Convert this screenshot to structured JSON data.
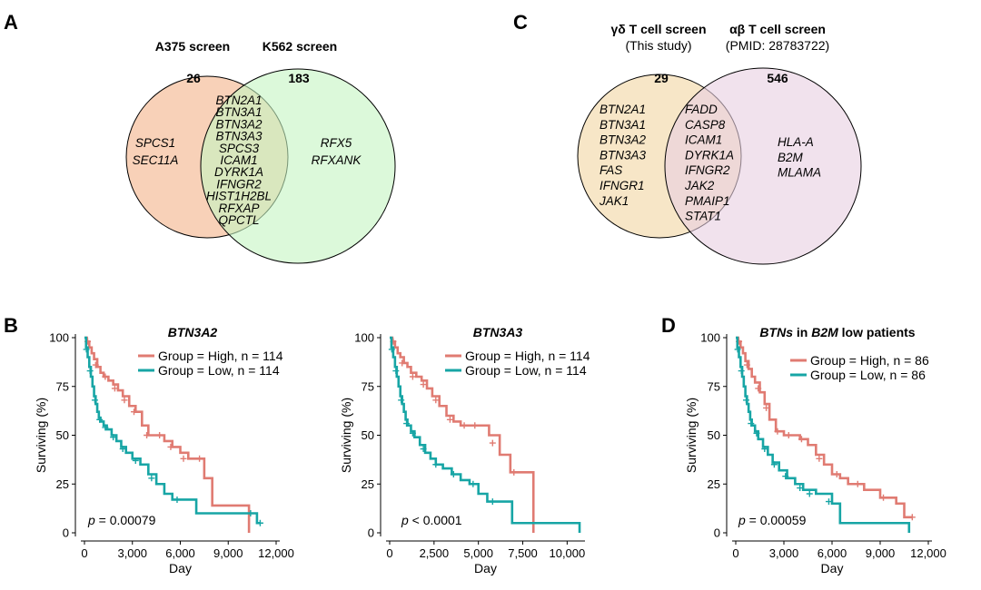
{
  "panels": {
    "A": {
      "label": "A",
      "type": "venn",
      "left": {
        "title": "A375 screen",
        "count": "26",
        "color": "#f7c9ab",
        "unique_genes": [
          "SPCS1",
          "SEC11A"
        ]
      },
      "right": {
        "title": "K562 screen",
        "count": "183",
        "color": "#c5f5c2",
        "unique_genes": [
          "RFX5",
          "RFXANK"
        ]
      },
      "overlap_genes": [
        "BTN2A1",
        "BTN3A1",
        "BTN3A2",
        "BTN3A3",
        "SPCS3",
        "ICAM1",
        "DYRK1A",
        "IFNGR2",
        "HIST1H2BL",
        "RFXAP",
        "QPCTL"
      ]
    },
    "C": {
      "label": "C",
      "type": "venn",
      "left": {
        "title": "γδ T cell screen",
        "subtitle": "(This study)",
        "count": "29",
        "color": "#f6e3c1",
        "unique_genes": [
          "BTN2A1",
          "BTN3A1",
          "BTN3A2",
          "BTN3A3",
          "FAS",
          "IFNGR1",
          "JAK1"
        ]
      },
      "right": {
        "title": "αβ T cell screen",
        "subtitle": "(PMID: 28783722)",
        "count": "546",
        "color": "#e8cfe1",
        "unique_genes": [
          "HLA-A",
          "B2M",
          "MLAMA"
        ]
      },
      "overlap_genes": [
        "FADD",
        "CASP8",
        "ICAM1",
        "DYRK1A",
        "IFNGR2",
        "JAK2",
        "PMAIP1",
        "STAT1"
      ]
    }
  },
  "chart_data": [
    {
      "panel": "B",
      "label": "B",
      "type": "line",
      "subtype": "kaplan-meier",
      "title": "BTN3A2",
      "xlabel": "Day",
      "ylabel": "Surviving (%)",
      "xlim": [
        0,
        12000
      ],
      "ylim": [
        0,
        100
      ],
      "xticks": [
        0,
        3000,
        6000,
        9000,
        12000
      ],
      "xtick_labels": [
        "0",
        "3,000",
        "6,000",
        "9,000",
        "12,000"
      ],
      "yticks": [
        0,
        25,
        50,
        75,
        100
      ],
      "ytick_labels": [
        "0",
        "25",
        "50",
        "75",
        "100"
      ],
      "legend": [
        "Group = High, n = 114",
        "Group = Low, n = 114"
      ],
      "pvalue_prefix": "p",
      "pvalue_text": " = 0.00079",
      "series": [
        {
          "name": "Group = High, n = 114",
          "color": "#e07b72",
          "x": [
            0,
            150,
            300,
            450,
            600,
            800,
            1000,
            1200,
            1500,
            1800,
            2100,
            2400,
            2800,
            3200,
            3600,
            4000,
            4500,
            5000,
            5500,
            6000,
            6500,
            7000,
            7500,
            8000,
            8700,
            9500,
            10300,
            10300
          ],
          "y": [
            100,
            98,
            95,
            92,
            89,
            85,
            82,
            80,
            78,
            76,
            73,
            70,
            65,
            62,
            55,
            50,
            50,
            47,
            44,
            41,
            38,
            38,
            28,
            14,
            14,
            14,
            14,
            0
          ],
          "censor_x": [
            200,
            700,
            1300,
            1900,
            2500,
            3100,
            3900,
            4700,
            5400,
            6200,
            7200
          ],
          "censor_y": [
            98,
            86,
            80,
            74,
            68,
            62,
            50,
            50,
            44,
            38,
            38
          ]
        },
        {
          "name": "Group = Low, n = 114",
          "color": "#17a5a5",
          "x": [
            0,
            100,
            200,
            300,
            400,
            500,
            600,
            700,
            800,
            900,
            1000,
            1200,
            1400,
            1700,
            2000,
            2300,
            2600,
            3000,
            3500,
            4000,
            4500,
            5000,
            5500,
            6000,
            7000,
            8000,
            9000,
            10000,
            10800,
            11000
          ],
          "y": [
            100,
            95,
            90,
            85,
            80,
            75,
            70,
            66,
            62,
            59,
            57,
            55,
            53,
            50,
            47,
            44,
            41,
            38,
            35,
            30,
            25,
            20,
            17,
            17,
            10,
            10,
            10,
            10,
            5,
            5
          ],
          "censor_x": [
            120,
            350,
            650,
            950,
            1300,
            1800,
            2400,
            3200,
            4200,
            5800,
            10400,
            11000
          ],
          "censor_y": [
            94,
            83,
            68,
            58,
            54,
            49,
            43,
            37,
            28,
            17,
            10,
            5
          ]
        }
      ]
    },
    {
      "panel": "B2",
      "label": "",
      "type": "line",
      "subtype": "kaplan-meier",
      "title": "BTN3A3",
      "xlabel": "Day",
      "ylabel": "Surviving (%)",
      "xlim": [
        0,
        10800
      ],
      "ylim": [
        0,
        100
      ],
      "xticks": [
        0,
        2500,
        5000,
        7500,
        10000
      ],
      "xtick_labels": [
        "0",
        "2,500",
        "5,000",
        "7,500",
        "10,000"
      ],
      "yticks": [
        0,
        25,
        50,
        75,
        100
      ],
      "ytick_labels": [
        "0",
        "25",
        "50",
        "75",
        "100"
      ],
      "legend": [
        "Group = High, n = 114",
        "Group = Low, n = 114"
      ],
      "pvalue_prefix": "p",
      "pvalue_text": " < 0.0001",
      "series": [
        {
          "name": "Group = High, n = 114",
          "color": "#e07b72",
          "x": [
            0,
            150,
            300,
            450,
            600,
            800,
            1000,
            1200,
            1500,
            1800,
            2100,
            2400,
            2800,
            3200,
            3600,
            4000,
            4500,
            5000,
            5600,
            6200,
            6800,
            7500,
            8100,
            8100
          ],
          "y": [
            100,
            98,
            95,
            92,
            90,
            87,
            85,
            82,
            80,
            78,
            74,
            70,
            65,
            60,
            57,
            55,
            55,
            55,
            50,
            40,
            31,
            31,
            31,
            0
          ],
          "censor_x": [
            200,
            700,
            1300,
            1900,
            2600,
            3400,
            4200,
            4800,
            5800,
            7000
          ],
          "censor_y": [
            98,
            87,
            80,
            76,
            68,
            58,
            55,
            55,
            46,
            31
          ]
        },
        {
          "name": "Group = Low, n = 114",
          "color": "#17a5a5",
          "x": [
            0,
            100,
            200,
            300,
            400,
            500,
            600,
            700,
            800,
            900,
            1000,
            1200,
            1400,
            1700,
            2000,
            2300,
            2600,
            3000,
            3500,
            4000,
            4500,
            5000,
            5500,
            6000,
            6900,
            6900,
            10700,
            10700
          ],
          "y": [
            100,
            95,
            90,
            85,
            80,
            75,
            70,
            66,
            62,
            58,
            55,
            52,
            49,
            45,
            41,
            38,
            35,
            33,
            30,
            27,
            25,
            20,
            16,
            16,
            16,
            5,
            5,
            0
          ],
          "censor_x": [
            120,
            350,
            650,
            950,
            1300,
            1900,
            2600,
            3600,
            4700,
            5800
          ],
          "censor_y": [
            94,
            83,
            68,
            56,
            51,
            43,
            35,
            30,
            25,
            16
          ]
        }
      ]
    },
    {
      "panel": "D",
      "label": "D",
      "type": "line",
      "subtype": "kaplan-meier",
      "title_parts": [
        "BTNs",
        " in ",
        "B2M",
        " low patients"
      ],
      "xlabel": "Day",
      "ylabel": "Surviving (%)",
      "xlim": [
        0,
        12000
      ],
      "ylim": [
        0,
        100
      ],
      "xticks": [
        0,
        3000,
        6000,
        9000,
        12000
      ],
      "xtick_labels": [
        "0",
        "3,000",
        "6,000",
        "9,000",
        "12,000"
      ],
      "yticks": [
        0,
        25,
        50,
        75,
        100
      ],
      "ytick_labels": [
        "0",
        "25",
        "50",
        "75",
        "100"
      ],
      "legend": [
        "Group = High, n = 86",
        "Group = Low, n = 86"
      ],
      "pvalue_prefix": "p",
      "pvalue_text": " = 0.00059",
      "series": [
        {
          "name": "Group = High, n = 86",
          "color": "#e07b72",
          "x": [
            0,
            150,
            300,
            450,
            600,
            800,
            1000,
            1200,
            1500,
            1800,
            2100,
            2500,
            3000,
            3500,
            4000,
            4500,
            5000,
            5500,
            6000,
            6500,
            7000,
            8000,
            9000,
            10000,
            10500,
            11000
          ],
          "y": [
            100,
            98,
            95,
            92,
            88,
            84,
            80,
            77,
            72,
            66,
            58,
            52,
            50,
            50,
            48,
            45,
            40,
            35,
            30,
            28,
            25,
            22,
            18,
            15,
            8,
            8
          ],
          "censor_x": [
            200,
            700,
            1400,
            1900,
            2600,
            3300,
            4100,
            5200,
            6300,
            7600,
            9200,
            11000
          ],
          "censor_y": [
            98,
            86,
            74,
            64,
            52,
            50,
            48,
            38,
            30,
            25,
            18,
            8
          ]
        },
        {
          "name": "Group = Low, n = 86",
          "color": "#17a5a5",
          "x": [
            0,
            100,
            200,
            300,
            400,
            500,
            600,
            700,
            800,
            900,
            1000,
            1200,
            1400,
            1700,
            2000,
            2300,
            2700,
            3200,
            3700,
            4200,
            5000,
            6000,
            6500,
            7000,
            9000,
            10800,
            10800
          ],
          "y": [
            100,
            95,
            90,
            85,
            80,
            75,
            70,
            66,
            62,
            58,
            55,
            52,
            48,
            44,
            40,
            36,
            32,
            28,
            25,
            22,
            20,
            15,
            5,
            5,
            5,
            5,
            0
          ],
          "censor_x": [
            120,
            350,
            650,
            950,
            1300,
            1800,
            2400,
            3100,
            4000,
            4600,
            5800
          ],
          "censor_y": [
            94,
            83,
            68,
            56,
            51,
            43,
            35,
            29,
            23,
            20,
            16
          ]
        }
      ]
    }
  ]
}
